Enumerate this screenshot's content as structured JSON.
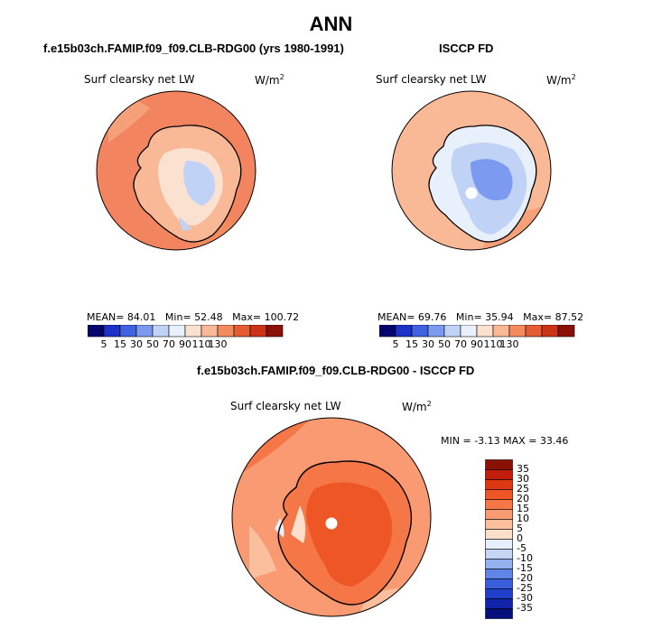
{
  "page_title": "ANN",
  "colors": {
    "ocean": "#f2855f",
    "land": "#fbd4bc",
    "coast": "#000000",
    "pole_hole": "#ffffff"
  },
  "chart_data": [
    {
      "type": "heatmap",
      "title": "f.e15b03ch.FAMIP.f09_f09.CLB-RDG00 (yrs 1980-1991)",
      "variable": "Surf clearsky net LW",
      "units": "W/m",
      "units_sup": "2",
      "stats": {
        "mean_label": "MEAN=",
        "mean": "84.01",
        "min_label": "Min=",
        "min": "52.48",
        "max_label": "Max=",
        "max": "100.72"
      },
      "colorbar": {
        "levels": [
          "5",
          "15",
          "30",
          "50",
          "70",
          "90",
          "110",
          "130"
        ],
        "colors": [
          "#08046e",
          "#1d32c8",
          "#3f62e0",
          "#7b9af0",
          "#c0d2f5",
          "#e8f0fb",
          "#fbe2d0",
          "#f9b896",
          "#f38b5e",
          "#e55b33",
          "#cc3418",
          "#8b1006"
        ]
      }
    },
    {
      "type": "heatmap",
      "title": "ISCCP FD",
      "variable": "Surf clearsky net LW",
      "units": "W/m",
      "units_sup": "2",
      "stats": {
        "mean_label": "MEAN=",
        "mean": "69.76",
        "min_label": "Min=",
        "min": "35.94",
        "max_label": "Max=",
        "max": "87.52"
      },
      "colorbar": {
        "levels": [
          "5",
          "15",
          "30",
          "50",
          "70",
          "90",
          "110",
          "130"
        ],
        "colors": [
          "#08046e",
          "#1d32c8",
          "#3f62e0",
          "#7b9af0",
          "#c0d2f5",
          "#e8f0fb",
          "#fbe2d0",
          "#f9b896",
          "#f38b5e",
          "#e55b33",
          "#cc3418",
          "#8b1006"
        ]
      }
    },
    {
      "type": "heatmap",
      "title": "f.e15b03ch.FAMIP.f09_f09.CLB-RDG00 - ISCCP FD",
      "variable": "Surf clearsky net LW",
      "units": "W/m",
      "units_sup": "2",
      "stats": {
        "min_label": "MIN =",
        "min": "-3.13",
        "max_label": "MAX =",
        "max": "33.46"
      },
      "colorbar": {
        "levels": [
          "35",
          "30",
          "25",
          "20",
          "15",
          "10",
          "5",
          "0",
          "-5",
          "-10",
          "-15",
          "-20",
          "-25",
          "-30",
          "-35"
        ],
        "colors": [
          "#8b1006",
          "#c01e0a",
          "#dc3812",
          "#ef5626",
          "#f57748",
          "#f99a72",
          "#fbbf9e",
          "#fde0cc",
          "#e6effb",
          "#c4d5f6",
          "#94b2f0",
          "#5f86e6",
          "#3a5ddb",
          "#2040cc",
          "#1023a9",
          "#060f7a"
        ]
      }
    }
  ]
}
